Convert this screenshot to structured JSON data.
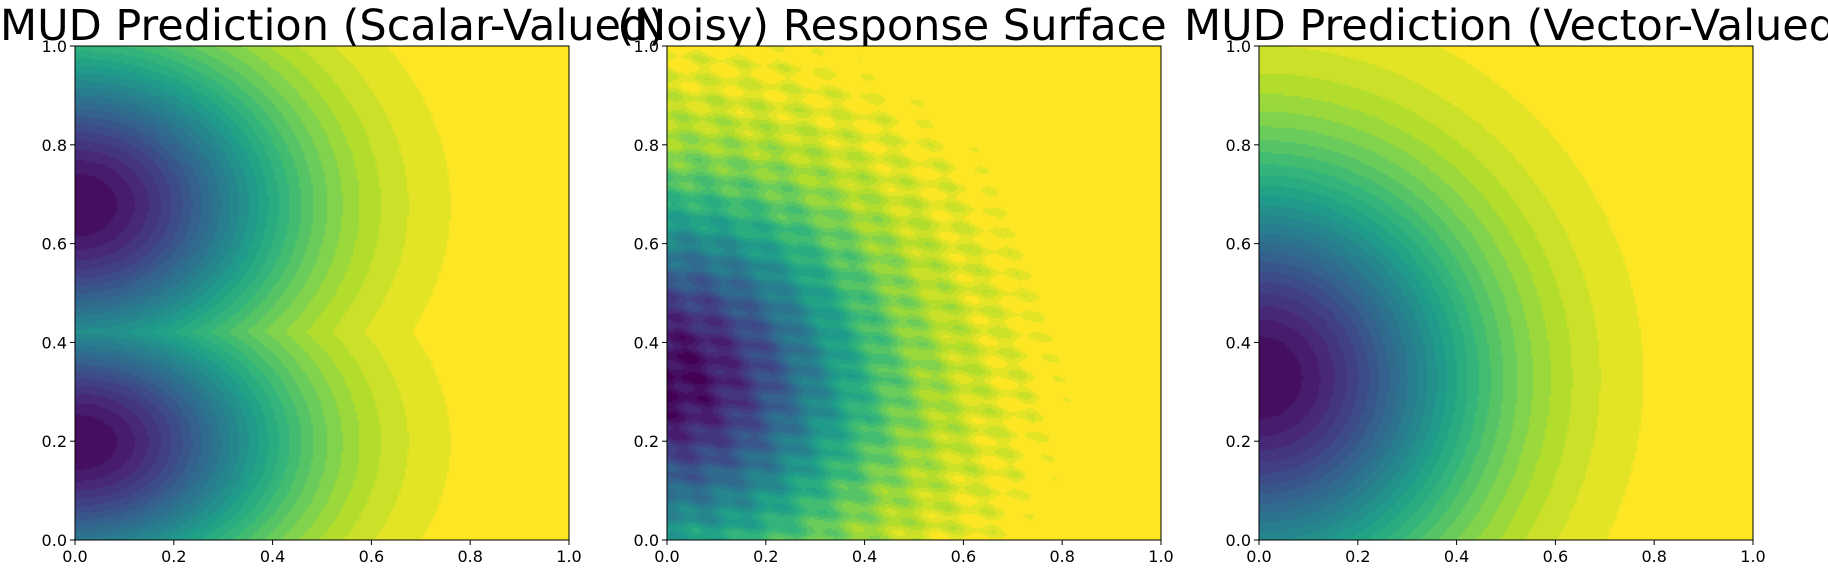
{
  "chart_data": [
    {
      "type": "contourf",
      "title": "MUD Prediction (Scalar-Valued)",
      "xlabel": "",
      "ylabel": "",
      "xlim": [
        0.0,
        1.0
      ],
      "ylim": [
        0.0,
        1.0
      ],
      "xticks": [
        "0.0",
        "0.2",
        "0.4",
        "0.6",
        "0.8",
        "1.0"
      ],
      "yticks": [
        "0.0",
        "0.2",
        "0.4",
        "0.6",
        "0.8",
        "1.0"
      ],
      "colormap": "viridis",
      "modes": [
        {
          "cx": 0.0,
          "cy": 0.68,
          "sx": 0.42,
          "sy": 0.32
        },
        {
          "cx": 0.0,
          "cy": 0.2,
          "sx": 0.42,
          "sy": 0.28
        }
      ],
      "noise": 0.0
    },
    {
      "type": "contourf",
      "title": "(Noisy) Response Surface",
      "xlabel": "",
      "ylabel": "",
      "xlim": [
        0.0,
        1.0
      ],
      "ylim": [
        0.0,
        1.0
      ],
      "xticks": [
        "0.0",
        "0.2",
        "0.4",
        "0.6",
        "0.8",
        "1.0"
      ],
      "yticks": [
        "0.0",
        "0.2",
        "0.4",
        "0.6",
        "0.8",
        "1.0"
      ],
      "colormap": "viridis",
      "modes": [
        {
          "cx": 0.0,
          "cy": 0.33,
          "sx": 0.4,
          "sy": 0.36
        }
      ],
      "noise": 1.0
    },
    {
      "type": "contourf",
      "title": "MUD Prediction (Vector-Valued)",
      "xlabel": "",
      "ylabel": "",
      "xlim": [
        0.0,
        1.0
      ],
      "ylim": [
        0.0,
        1.0
      ],
      "xticks": [
        "0.0",
        "0.2",
        "0.4",
        "0.6",
        "0.8",
        "1.0"
      ],
      "yticks": [
        "0.0",
        "0.2",
        "0.4",
        "0.6",
        "0.8",
        "1.0"
      ],
      "colormap": "viridis",
      "modes": [
        {
          "cx": 0.0,
          "cy": 0.33,
          "sx": 0.43,
          "sy": 0.42
        }
      ],
      "noise": 0.0
    }
  ],
  "colors": {
    "viridis": [
      "#440154",
      "#482878",
      "#3e4989",
      "#31688e",
      "#26828e",
      "#1f9e89",
      "#35b779",
      "#6ece58",
      "#b5de2b",
      "#fde725"
    ]
  }
}
